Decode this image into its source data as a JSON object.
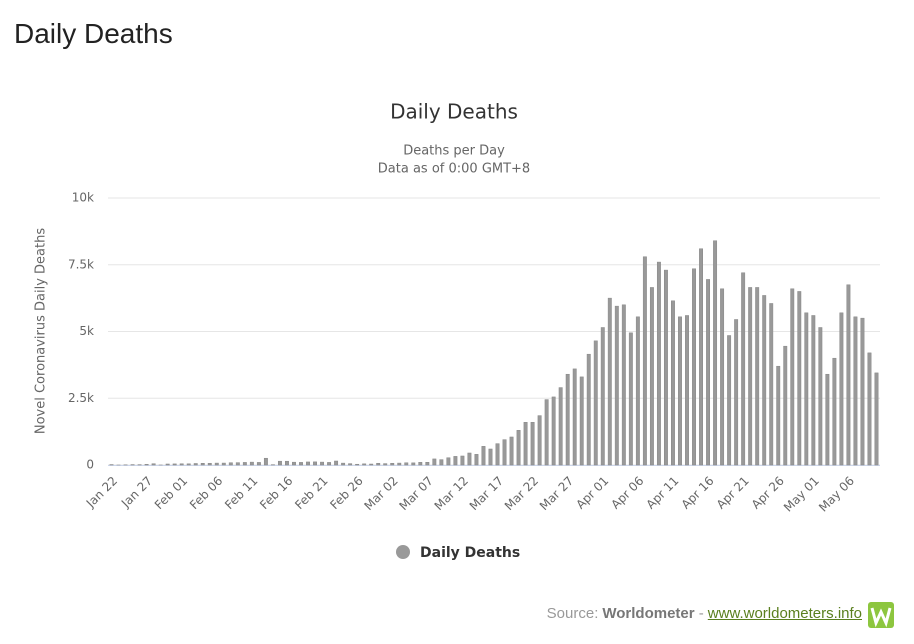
{
  "page_title": "Daily Deaths",
  "chart_data": {
    "type": "bar",
    "title": "Daily Deaths",
    "subtitle": [
      "Deaths per Day",
      "Data as of 0:00 GMT+8"
    ],
    "y_axis_label": "Novel Coronavirus Daily Deaths",
    "categories": [
      "Jan 22",
      null,
      null,
      null,
      null,
      "Jan 27",
      null,
      null,
      null,
      null,
      "Feb 01",
      null,
      null,
      null,
      null,
      "Feb 06",
      null,
      null,
      null,
      null,
      "Feb 11",
      null,
      null,
      null,
      null,
      "Feb 16",
      null,
      null,
      null,
      null,
      "Feb 21",
      null,
      null,
      null,
      null,
      "Feb 26",
      null,
      null,
      null,
      null,
      "Mar 02",
      null,
      null,
      null,
      null,
      "Mar 07",
      null,
      null,
      null,
      null,
      "Mar 12",
      null,
      null,
      null,
      null,
      "Mar 17",
      null,
      null,
      null,
      null,
      "Mar 22",
      null,
      null,
      null,
      null,
      "Mar 27",
      null,
      null,
      null,
      null,
      "Apr 01",
      null,
      null,
      null,
      null,
      "Apr 06",
      null,
      null,
      null,
      null,
      "Apr 11",
      null,
      null,
      null,
      null,
      "Apr 16",
      null,
      null,
      null,
      null,
      "Apr 21",
      null,
      null,
      null,
      null,
      "Apr 26",
      null,
      null,
      null,
      null,
      "May 01",
      null,
      null,
      null,
      null,
      "May 06",
      null,
      null,
      null,
      null
    ],
    "series": [
      {
        "name": "Daily Deaths",
        "color": "#999999",
        "values": [
          17,
          1,
          8,
          16,
          14,
          26,
          49,
          2,
          38,
          42,
          46,
          45,
          57,
          65,
          66,
          72,
          73,
          86,
          89,
          97,
          108,
          97,
          254,
          13,
          143,
          142,
          106,
          98,
          115,
          118,
          109,
          97,
          150,
          71,
          52,
          29,
          44,
          37,
          66,
          53,
          66,
          72,
          84,
          81,
          101,
          103,
          228,
          201,
          272,
          323,
          338,
          450,
          400,
          700,
          600,
          800,
          950,
          1050,
          1300,
          1600,
          1600,
          1850,
          2450,
          2550,
          2900,
          3400,
          3600,
          3300,
          4150,
          4650,
          5150,
          6250,
          5950,
          6000,
          4950,
          5550,
          7800,
          6650,
          7600,
          7300,
          6150,
          5550,
          5600,
          7350,
          8100,
          6950,
          8400,
          6600,
          4850,
          5450,
          7200,
          6650,
          6650,
          6350,
          6050,
          3700,
          4450,
          6600,
          6500,
          5700,
          5600,
          5150,
          3400,
          4000,
          5700,
          6750,
          5550,
          5500,
          4200,
          3450
        ]
      }
    ],
    "ylim": [
      0,
      10000
    ],
    "yticks": [
      0,
      {
        "value": 2500,
        "label": "2.5k"
      },
      {
        "value": 5000,
        "label": "5k"
      },
      {
        "value": 7500,
        "label": "7.5k"
      },
      {
        "value": 10000,
        "label": "10k"
      }
    ],
    "grid": true
  },
  "footer": {
    "source_label": "Source:",
    "source_name": "Worldometer",
    "separator": "-",
    "link": "www.worldometers.info"
  }
}
